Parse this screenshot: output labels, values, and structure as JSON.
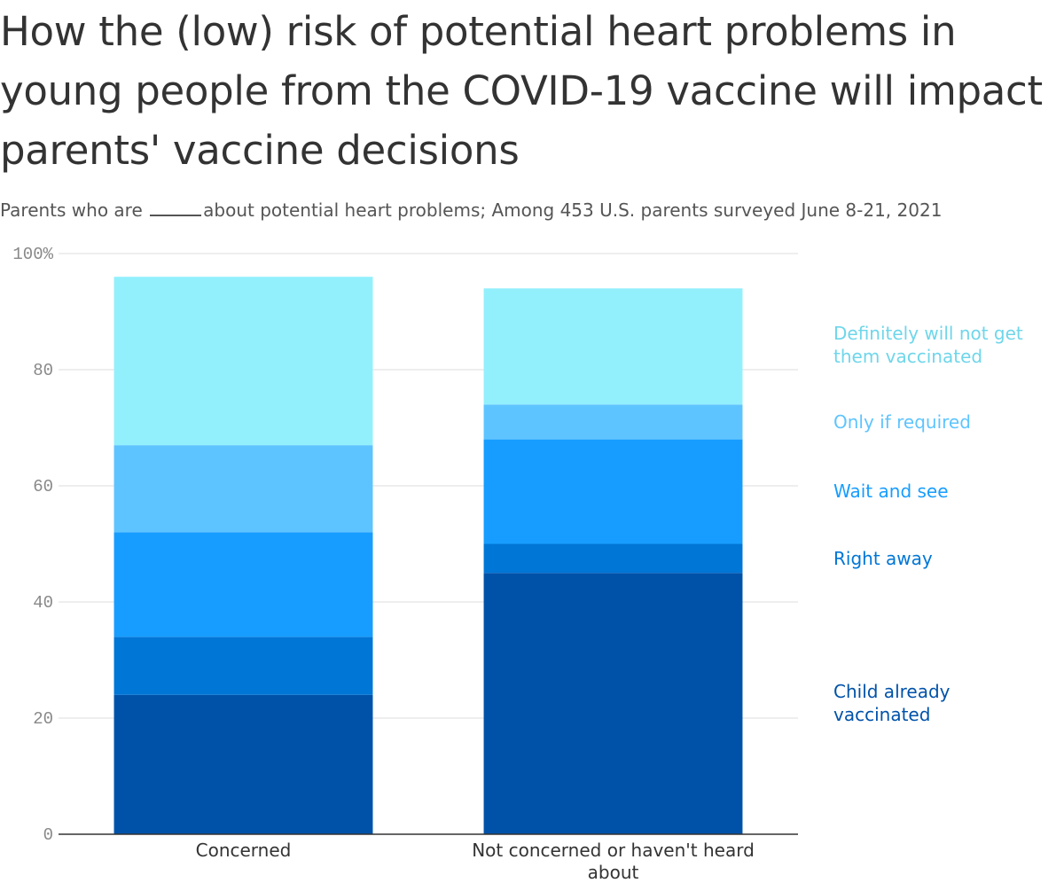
{
  "chart_data": {
    "type": "bar",
    "stacked": true,
    "title": "How the (low) risk of potential heart problems in young people from the COVID-19 vaccine will impact parents' vaccine decisions",
    "subtitle_before": "Parents who are",
    "subtitle_after": "about potential heart problems; Among 453 U.S. parents surveyed June 8-21, 2021",
    "categories": [
      "Concerned",
      "Not concerned or haven't heard about"
    ],
    "ylim": [
      0,
      100
    ],
    "yticks": [
      0,
      20,
      40,
      60,
      80,
      100
    ],
    "ytick_labels": [
      "0",
      "20",
      "40",
      "60",
      "80",
      "100%"
    ],
    "grid": true,
    "legend_position": "right",
    "series": [
      {
        "name": "Child already vaccinated",
        "values": [
          24,
          45
        ],
        "color": "#0052a9",
        "label_lines": [
          "Child already",
          "vaccinated"
        ]
      },
      {
        "name": "Right away",
        "values": [
          10,
          5
        ],
        "color": "#0076d6",
        "label_lines": [
          "Right away"
        ]
      },
      {
        "name": "Wait and see",
        "values": [
          18,
          18
        ],
        "color": "#179dff",
        "label_lines": [
          "Wait and see"
        ]
      },
      {
        "name": "Only if required",
        "values": [
          15,
          6
        ],
        "color": "#5ec4ff",
        "label_lines": [
          "Only if required"
        ]
      },
      {
        "name": "Definitely will not get them vaccinated",
        "values": [
          29,
          20
        ],
        "color": "#92f0fd",
        "label_color": "#6fd6ea",
        "label_lines": [
          "Definitely will not get",
          "them vaccinated"
        ]
      }
    ]
  }
}
